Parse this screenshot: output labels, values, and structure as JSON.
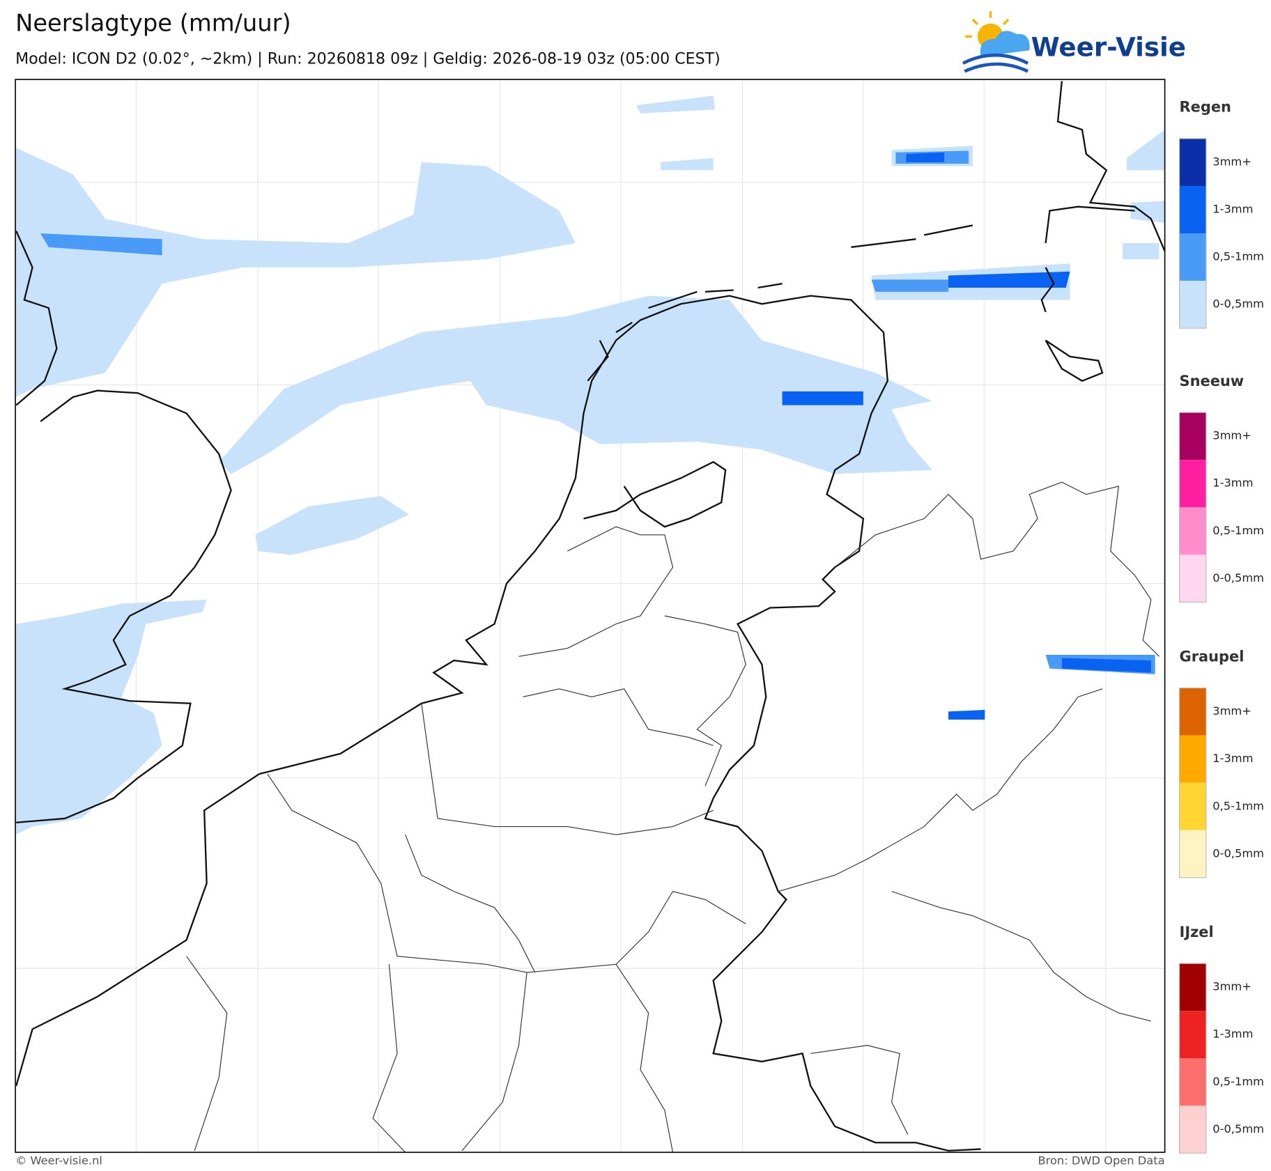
{
  "header": {
    "title": "Neerslagtype (mm/uur)",
    "subtitle": "Model: ICON D2 (0.02°, ~2km)  |  Run: 20260818 09z  |  Geldig: 2026-08-19 03z (05:00 CEST)"
  },
  "logo": {
    "text": "Weer-Visie"
  },
  "legend": {
    "groups": [
      {
        "title": "Regen",
        "items": [
          {
            "label": "3mm+",
            "color": "#0a2fa8"
          },
          {
            "label": "1-3mm",
            "color": "#0a62f2"
          },
          {
            "label": "0,5-1mm",
            "color": "#4a9bf7"
          },
          {
            "label": "0-0,5mm",
            "color": "#c9e2fb"
          }
        ]
      },
      {
        "title": "Sneeuw",
        "items": [
          {
            "label": "3mm+",
            "color": "#a8005f"
          },
          {
            "label": "1-3mm",
            "color": "#ff1fa0"
          },
          {
            "label": "0,5-1mm",
            "color": "#ff8dcc"
          },
          {
            "label": "0-0,5mm",
            "color": "#ffd7ee"
          }
        ]
      },
      {
        "title": "Graupel",
        "items": [
          {
            "label": "3mm+",
            "color": "#dd6300"
          },
          {
            "label": "1-3mm",
            "color": "#ffa800"
          },
          {
            "label": "0,5-1mm",
            "color": "#ffd534"
          },
          {
            "label": "0-0,5mm",
            "color": "#fff3c4"
          }
        ]
      },
      {
        "title": "IJzel",
        "items": [
          {
            "label": "3mm+",
            "color": "#a10000"
          },
          {
            "label": "1-3mm",
            "color": "#ee2222"
          },
          {
            "label": "0,5-1mm",
            "color": "#ff6e6e"
          },
          {
            "label": "0-0,5mm",
            "color": "#ffd0d0"
          }
        ]
      }
    ]
  },
  "footer": {
    "left": "© Weer-visie.nl",
    "right": "Bron: DWD Open Data"
  }
}
